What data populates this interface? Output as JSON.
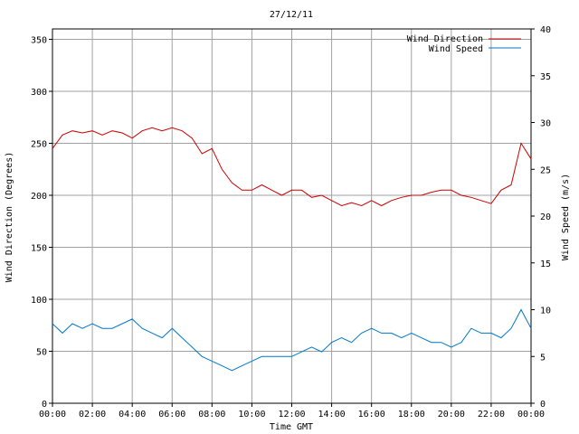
{
  "chart_data": {
    "type": "line",
    "title": "27/12/11",
    "xlabel": "Time GMT",
    "ylabel_left": "Wind Direction (Degrees)",
    "ylabel_right": "Wind Speed (m/s)",
    "x_ticks": [
      "00:00",
      "02:00",
      "04:00",
      "06:00",
      "08:00",
      "10:00",
      "12:00",
      "14:00",
      "16:00",
      "18:00",
      "20:00",
      "22:00",
      "00:00"
    ],
    "ylim_left": [
      0,
      360
    ],
    "yticks_left": [
      0,
      50,
      100,
      150,
      200,
      250,
      300,
      350
    ],
    "ylim_right": [
      0,
      40
    ],
    "yticks_right": [
      0,
      5,
      10,
      15,
      20,
      25,
      30,
      35,
      40
    ],
    "grid": true,
    "legend_position": "top-right",
    "colors": {
      "direction": "#cc0000",
      "speed": "#0077cc",
      "grid": "#a0a0a0"
    },
    "series": [
      {
        "name": "Wind Direction",
        "axis": "left",
        "x_hours": [
          0,
          0.5,
          1,
          1.5,
          2,
          2.5,
          3,
          3.5,
          4,
          4.5,
          5,
          5.5,
          6,
          6.5,
          7,
          7.5,
          8,
          8.5,
          9,
          9.5,
          10,
          10.5,
          11,
          11.5,
          12,
          12.5,
          13,
          13.5,
          14,
          14.5,
          15,
          15.5,
          16,
          16.5,
          17,
          17.5,
          18,
          18.5,
          19,
          19.5,
          20,
          20.5,
          21,
          21.5,
          22,
          22.5,
          23,
          23.5,
          24
        ],
        "values": [
          245,
          258,
          262,
          260,
          262,
          258,
          262,
          260,
          255,
          262,
          265,
          262,
          265,
          262,
          255,
          240,
          245,
          225,
          212,
          205,
          205,
          210,
          205,
          200,
          205,
          205,
          198,
          200,
          195,
          190,
          193,
          190,
          195,
          190,
          195,
          198,
          200,
          200,
          203,
          205,
          205,
          200,
          198,
          195,
          192,
          205,
          210,
          250,
          235
        ]
      },
      {
        "name": "Wind Speed",
        "axis": "right",
        "x_hours": [
          0,
          0.5,
          1,
          1.5,
          2,
          2.5,
          3,
          3.5,
          4,
          4.5,
          5,
          5.5,
          6,
          6.5,
          7,
          7.5,
          8,
          8.5,
          9,
          9.5,
          10,
          10.5,
          11,
          11.5,
          12,
          12.5,
          13,
          13.5,
          14,
          14.5,
          15,
          15.5,
          16,
          16.5,
          17,
          17.5,
          18,
          18.5,
          19,
          19.5,
          20,
          20.5,
          21,
          21.5,
          22,
          22.5,
          23,
          23.5,
          24
        ],
        "values": [
          8.5,
          7.5,
          8.5,
          8,
          8.5,
          8,
          8,
          8.5,
          9,
          8,
          7.5,
          7,
          8,
          7,
          6,
          5,
          4.5,
          4,
          3.5,
          4,
          4.5,
          5,
          5,
          5,
          5,
          5.5,
          6,
          5.5,
          6.5,
          7,
          6.5,
          7.5,
          8,
          7.5,
          7.5,
          7,
          7.5,
          7,
          6.5,
          6.5,
          6,
          6.5,
          8,
          7.5,
          7.5,
          7,
          8,
          10,
          8
        ]
      }
    ]
  }
}
